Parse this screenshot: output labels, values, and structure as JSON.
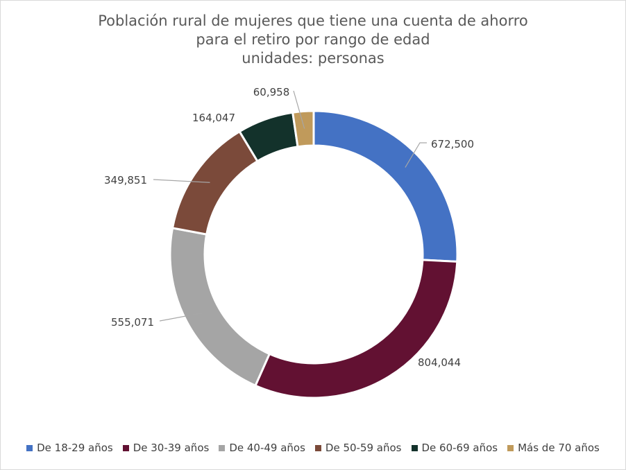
{
  "chart_data": {
    "type": "pie",
    "variant": "donut",
    "title_lines": [
      "Población rural de mujeres que tiene una cuenta de ahorro",
      "para el retiro por rango de edad",
      "unidades: personas"
    ],
    "legend_position": "bottom",
    "series": [
      {
        "name": "De 18-29 años",
        "value": 672500,
        "label": "672,500",
        "color": "#4472C4"
      },
      {
        "name": "De 30-39 años",
        "value": 804044,
        "label": "804,044",
        "color": "#621132"
      },
      {
        "name": "De 40-49 años",
        "value": 555071,
        "label": "555,071",
        "color": "#A5A5A5"
      },
      {
        "name": "De 50-59 años",
        "value": 349851,
        "label": "349,851",
        "color": "#7B4A3A"
      },
      {
        "name": "De 60-69 años",
        "value": 164047,
        "label": "164,047",
        "color": "#13322B"
      },
      {
        "name": "Más de 70 años",
        "value": 60958,
        "label": "60,958",
        "color": "#C09A5B"
      }
    ]
  }
}
